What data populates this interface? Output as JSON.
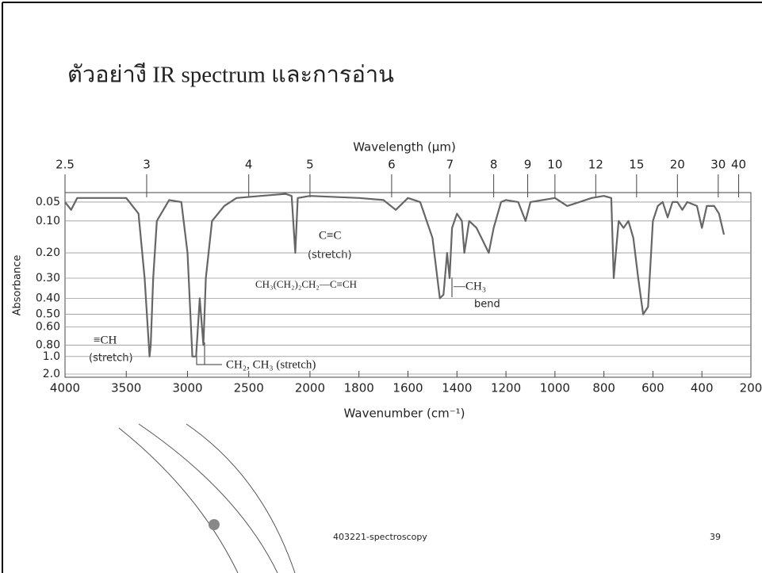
{
  "slide": {
    "title": "ตัวอย่างี IR spectrum และการอ่าน",
    "footer": "403221-spectroscopy",
    "page": "39"
  },
  "chart_data": {
    "type": "line",
    "x_label": "Wavenumber (cm⁻¹)",
    "x2_label": "Wavelength (μm)",
    "y_label": "Absorbance",
    "annotations": [
      "≡CH",
      "(stretch)",
      "CH₂, CH₃ (stretch)",
      "C≡C",
      "(stretch)",
      "CH₃(CH₂)₂CH₂—C≡CH",
      "—CH₃",
      "bend"
    ],
    "color": "#666666",
    "x": [
      4000,
      3950,
      3900,
      3700,
      3500,
      3400,
      3350,
      3310,
      3300,
      3280,
      3250,
      3150,
      3050,
      3000,
      2960,
      2930,
      2900,
      2870,
      2850,
      2800,
      2700,
      2600,
      2400,
      2200,
      2150,
      2120,
      2100,
      2000,
      1800,
      1700,
      1650,
      1600,
      1550,
      1500,
      1470,
      1455,
      1440,
      1430,
      1420,
      1400,
      1380,
      1370,
      1350,
      1320,
      1300,
      1270,
      1250,
      1220,
      1200,
      1150,
      1120,
      1100,
      1000,
      950,
      900,
      850,
      800,
      770,
      760,
      740,
      720,
      700,
      680,
      660,
      640,
      620,
      600,
      580,
      560,
      540,
      520,
      500,
      480,
      460,
      420,
      400,
      380,
      350,
      330,
      310
    ],
    "values": [
      0.05,
      0.07,
      0.04,
      0.04,
      0.04,
      0.08,
      0.3,
      1.0,
      0.8,
      0.3,
      0.1,
      0.045,
      0.05,
      0.2,
      1.0,
      1.0,
      0.4,
      0.8,
      0.3,
      0.1,
      0.06,
      0.04,
      0.035,
      0.03,
      0.035,
      0.2,
      0.04,
      0.035,
      0.04,
      0.045,
      0.07,
      0.04,
      0.05,
      0.15,
      0.4,
      0.38,
      0.2,
      0.3,
      0.12,
      0.08,
      0.1,
      0.2,
      0.1,
      0.12,
      0.15,
      0.2,
      0.12,
      0.05,
      0.045,
      0.05,
      0.1,
      0.05,
      0.04,
      0.06,
      0.05,
      0.04,
      0.035,
      0.04,
      0.3,
      0.1,
      0.12,
      0.1,
      0.15,
      0.3,
      0.5,
      0.45,
      0.1,
      0.06,
      0.05,
      0.09,
      0.05,
      0.05,
      0.07,
      0.05,
      0.06,
      0.12,
      0.06,
      0.06,
      0.08,
      0.14
    ],
    "xlim": [
      4000,
      200
    ],
    "x_scale_break": 2000,
    "x_scale_ratio": 2,
    "xticks": [
      4000,
      3500,
      3000,
      2500,
      2000,
      1800,
      1600,
      1400,
      1200,
      1000,
      800,
      600,
      400,
      200
    ],
    "x2ticks": [
      2.5,
      3,
      4,
      5,
      6,
      7,
      8,
      9,
      10,
      12,
      15,
      20,
      30,
      40
    ],
    "ylim": [
      0.027,
      2
    ],
    "y_scale": "transmittance",
    "yticks": [
      0.05,
      {
        "value": 0.1,
        "label": "0.10"
      },
      {
        "value": 0.2,
        "label": "0.20"
      },
      {
        "value": 0.3,
        "label": "0.30"
      },
      {
        "value": 0.4,
        "label": "0.40"
      },
      {
        "value": 0.5,
        "label": "0.50"
      },
      {
        "value": 0.6,
        "label": "0.60"
      },
      {
        "value": 0.8,
        "label": "0.80"
      },
      {
        "value": 1,
        "label": "1.0"
      },
      {
        "value": 2,
        "label": "2.0"
      }
    ],
    "grid": true
  }
}
